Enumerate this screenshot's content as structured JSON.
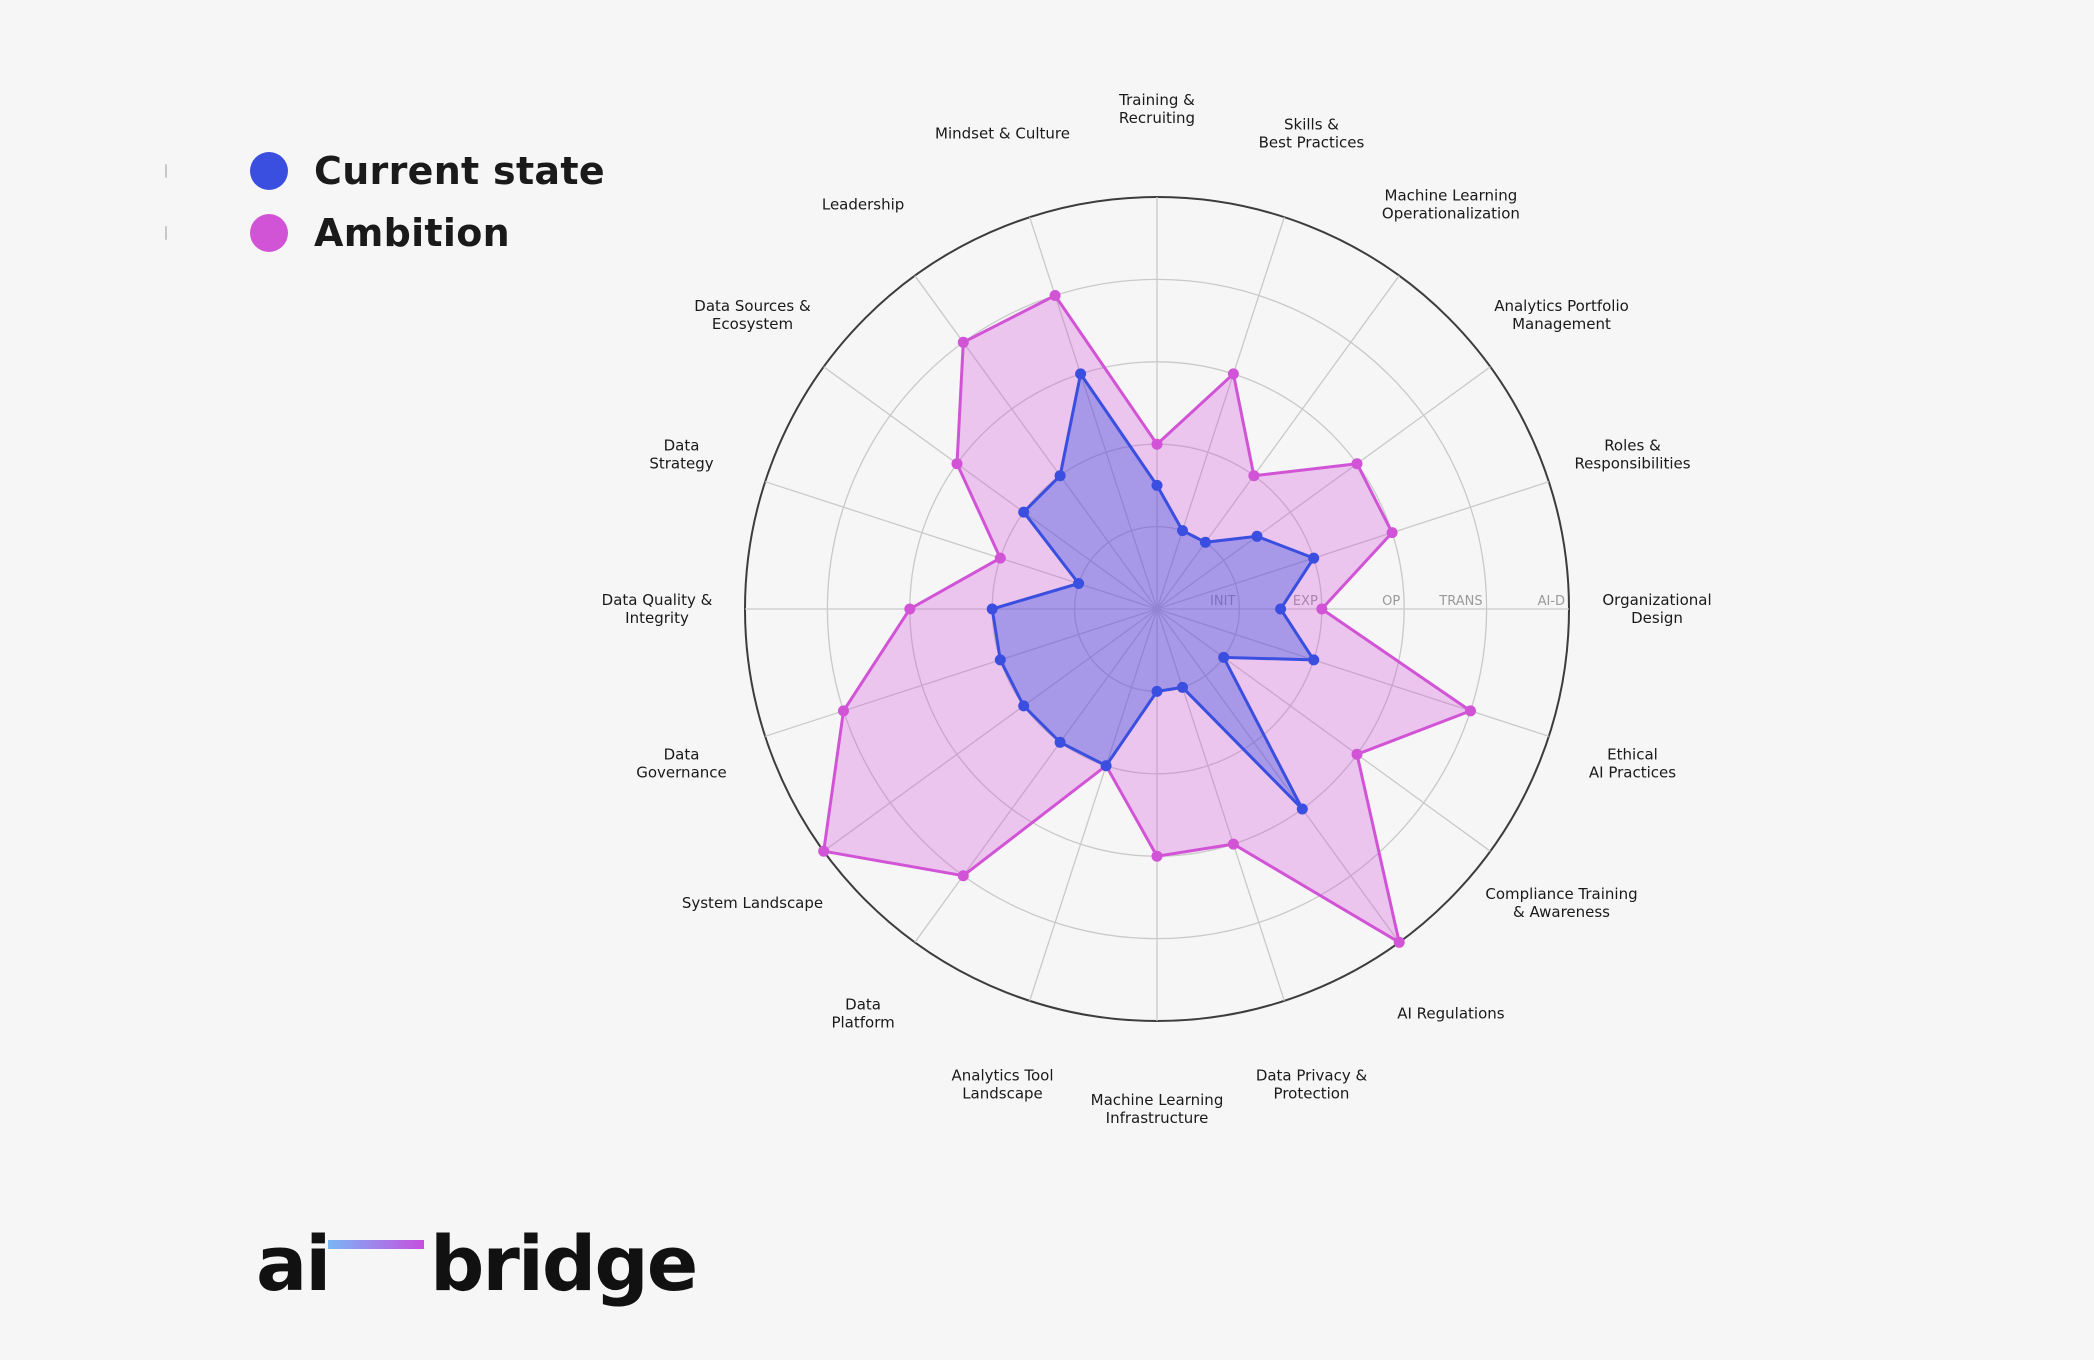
{
  "legend": {
    "items": [
      {
        "label": "Current state",
        "color": "#3a4fe0"
      },
      {
        "label": "Ambition",
        "color": "#d254d6"
      }
    ]
  },
  "logo": {
    "left": "ai",
    "right": "bridge"
  },
  "chart_data": {
    "type": "radar",
    "title": "",
    "levels": [
      "INIT",
      "EXP",
      "OP",
      "TRANS",
      "AI-D"
    ],
    "rmax": 5,
    "grid": true,
    "legend_position": "top-left",
    "categories": [
      "Organizational\nDesign",
      "Roles &\nResponsibilities",
      "Analytics Portfolio\nManagement",
      "Machine Learning\nOperationalization",
      "Skills &\nBest Practices",
      "Training &\nRecruiting",
      "Mindset & Culture",
      "Leadership",
      "Data Sources &\nEcosystem",
      "Data\nStrategy",
      "Data Quality &\nIntegrity",
      "Data\nGovernance",
      "System Landscape",
      "Data\nPlatform",
      "Analytics Tool\nLandscape",
      "Machine Learning\nInfrastructure",
      "Data Privacy &\nProtection",
      "AI Regulations",
      "Compliance Training\n& Awareness",
      "Ethical\nAI Practices"
    ],
    "series": [
      {
        "name": "Ambition",
        "color": "#d254d6",
        "values": [
          2.0,
          3.0,
          3.0,
          2.0,
          3.0,
          2.0,
          4.0,
          4.0,
          3.0,
          2.0,
          3.0,
          4.0,
          5.0,
          4.0,
          2.0,
          3.0,
          3.0,
          5.0,
          3.0,
          4.0
        ]
      },
      {
        "name": "Current state",
        "color": "#3a4fe0",
        "values": [
          1.5,
          2.0,
          1.5,
          1.0,
          1.0,
          1.5,
          3.0,
          2.0,
          2.0,
          1.0,
          2.0,
          2.0,
          2.0,
          2.0,
          2.0,
          1.0,
          1.0,
          3.0,
          1.0,
          2.0
        ]
      }
    ]
  }
}
